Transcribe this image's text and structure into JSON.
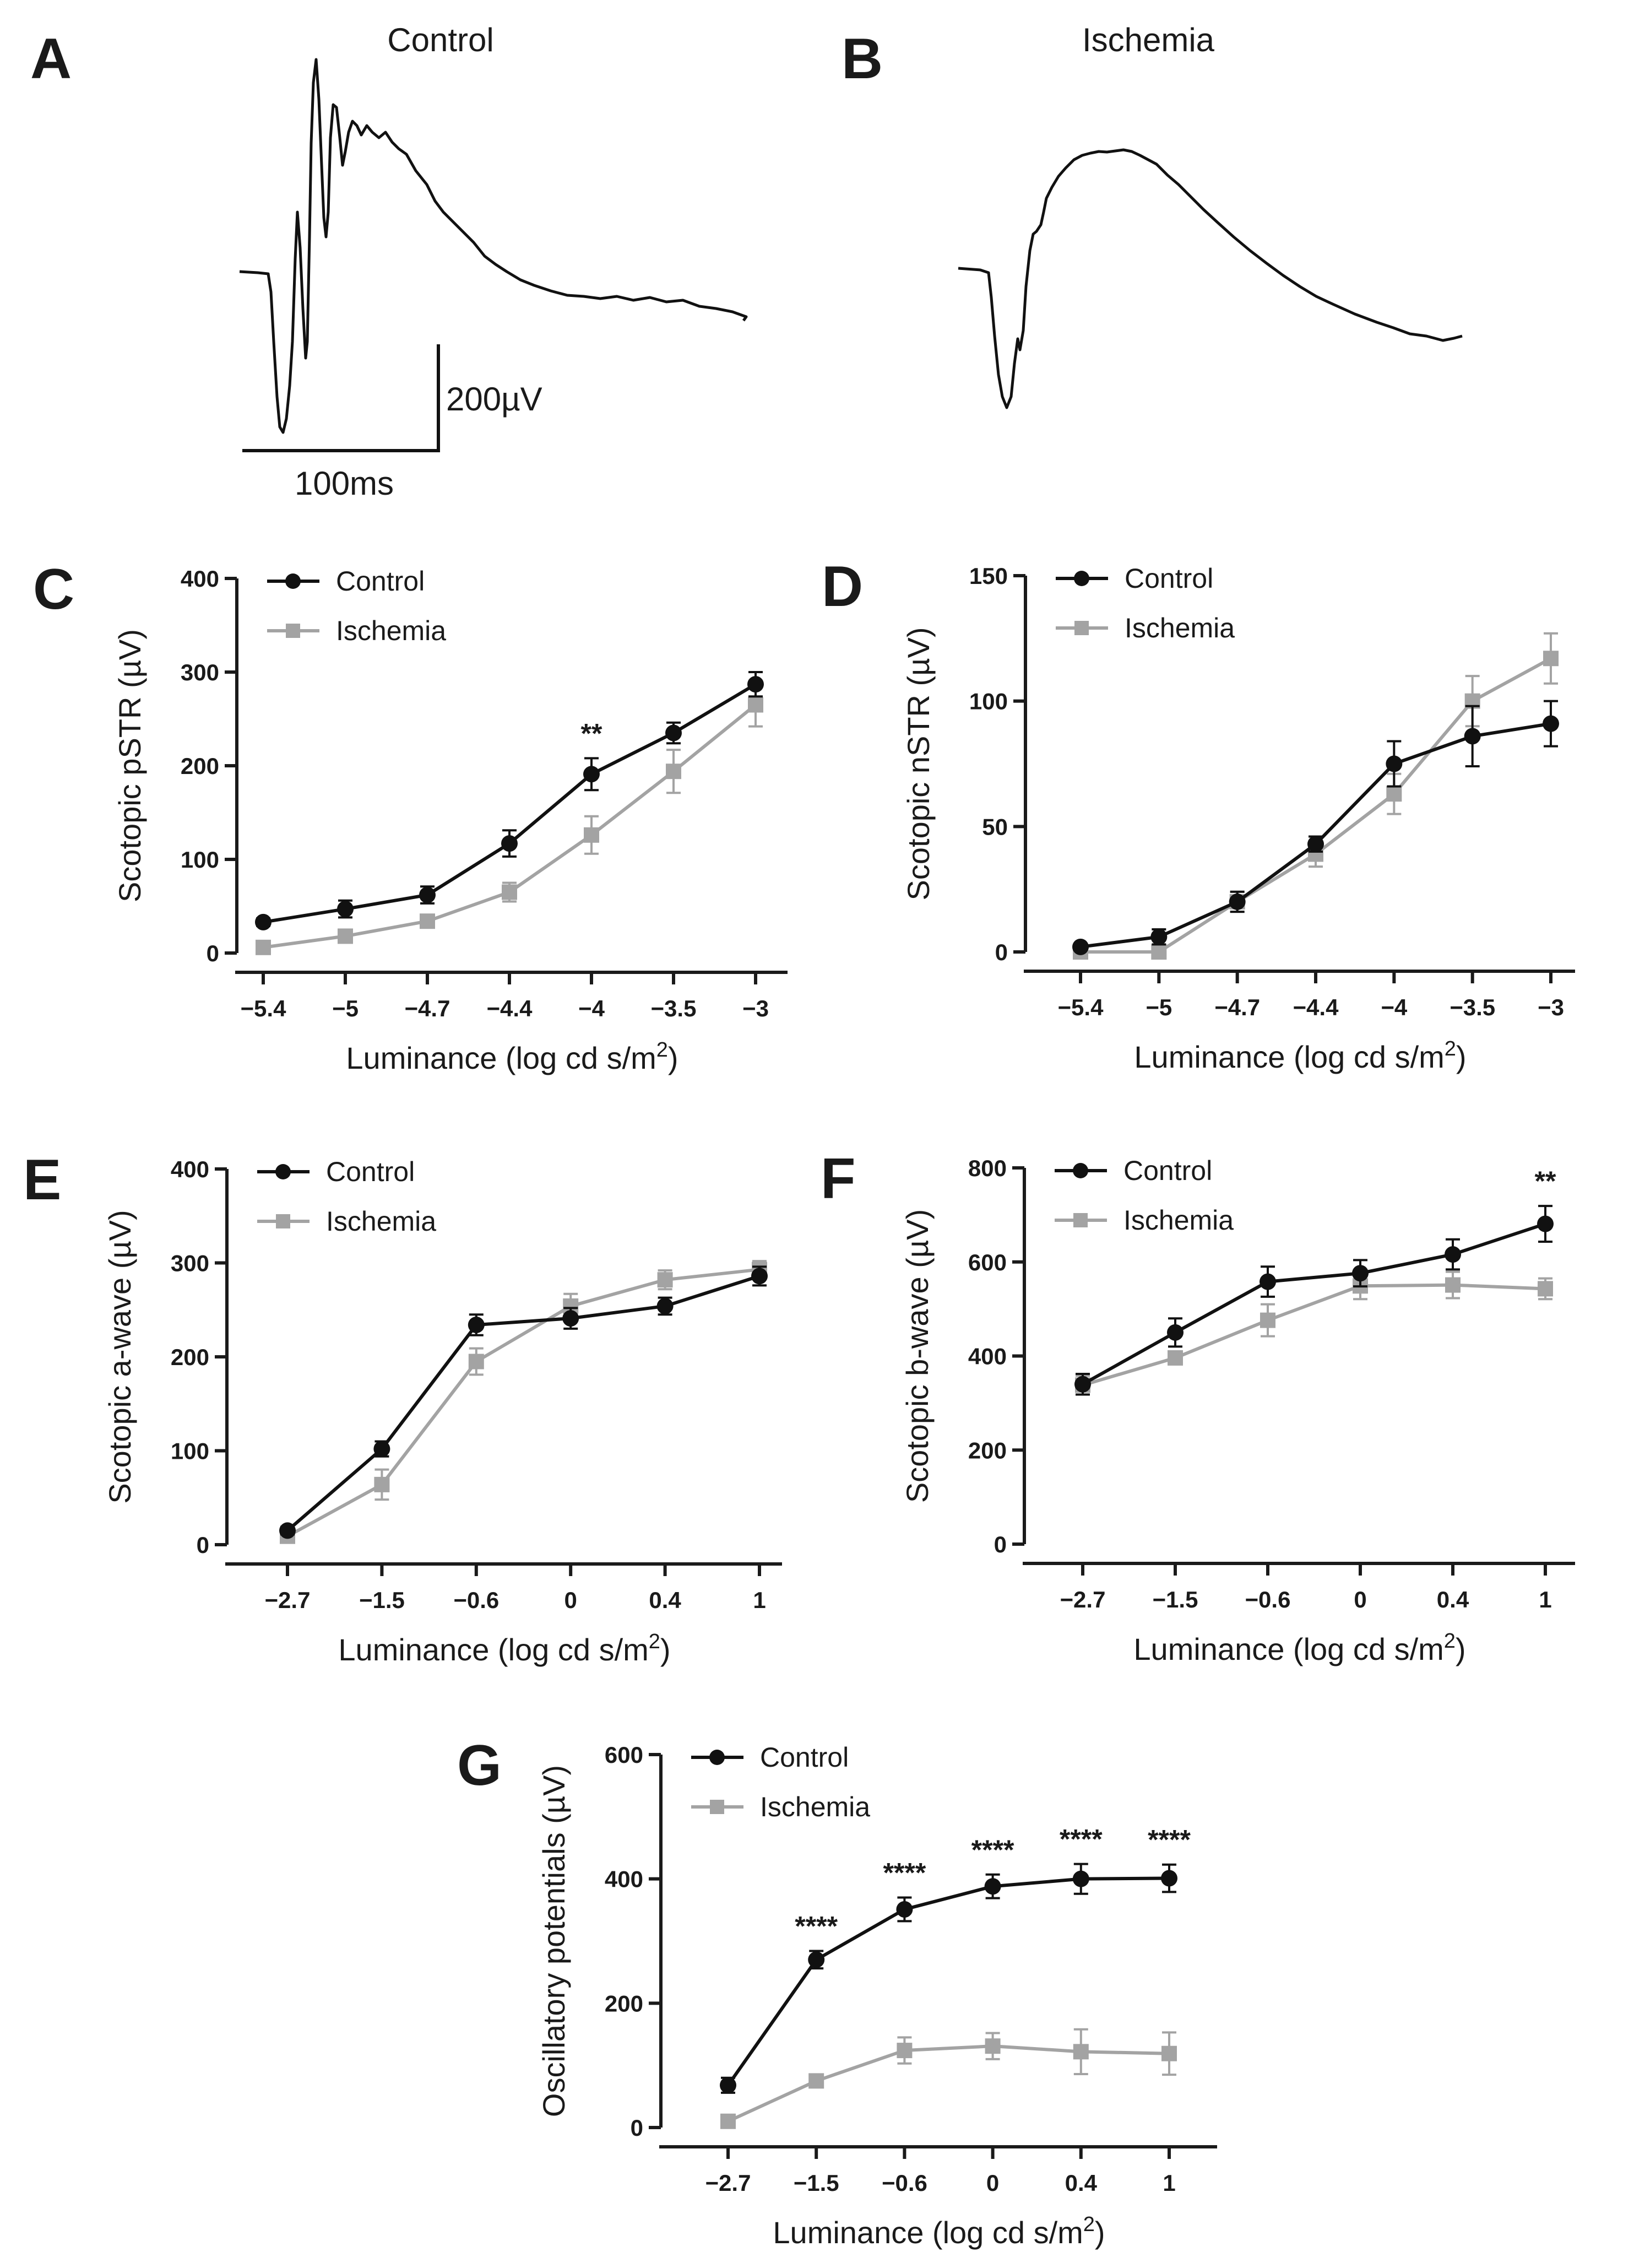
{
  "panels": {
    "A": {
      "letter": "A",
      "title": "Control"
    },
    "B": {
      "letter": "B",
      "title": "Ischemia"
    },
    "scale_bar": {
      "voltage": "200µV",
      "time": "100ms"
    }
  },
  "legend": {
    "control": "Control",
    "ischemia": "Ischemia"
  },
  "colors": {
    "control": "#111111",
    "ischemia": "#a3a3a3",
    "axis": "#1a1a1a"
  },
  "chart_data": [
    {
      "id": "C",
      "letter": "C",
      "type": "line",
      "ylabel": "Scotopic pSTR (µV)",
      "xlabel": "Luminance (log cd s/m²)",
      "categories": [
        "-5.4",
        "-5",
        "-4.7",
        "-4.4",
        "-4",
        "-3.5",
        "-3"
      ],
      "yticks": [
        0,
        100,
        200,
        300,
        400
      ],
      "ylim": [
        0,
        400
      ],
      "series": [
        {
          "name": "Control",
          "values": [
            33,
            47,
            62,
            117,
            191,
            235,
            287
          ],
          "errors": [
            4,
            9,
            9,
            14,
            17,
            11,
            13
          ]
        },
        {
          "name": "Ischemia",
          "values": [
            6,
            18,
            34,
            65,
            126,
            194,
            265
          ],
          "errors": [
            3,
            4,
            5,
            10,
            20,
            23,
            23
          ]
        }
      ],
      "annotations": [
        {
          "index": 4,
          "text": "**"
        }
      ]
    },
    {
      "id": "D",
      "letter": "D",
      "type": "line",
      "ylabel": "Scotopic nSTR (µV)",
      "xlabel": "Luminance (log cd s/m²)",
      "categories": [
        "-5.4",
        "-5",
        "-4.7",
        "-4.4",
        "-4",
        "-3.5",
        "-3"
      ],
      "yticks": [
        0,
        50,
        100,
        150
      ],
      "ylim": [
        0,
        150
      ],
      "series": [
        {
          "name": "Control",
          "values": [
            2,
            6,
            20,
            43,
            75,
            86,
            91
          ],
          "errors": [
            1,
            3,
            4,
            3,
            9,
            12,
            9
          ]
        },
        {
          "name": "Ischemia",
          "values": [
            0,
            0,
            20,
            39,
            63,
            100,
            117
          ],
          "errors": [
            1,
            1,
            4,
            5,
            8,
            10,
            10
          ]
        }
      ],
      "annotations": []
    },
    {
      "id": "E",
      "letter": "E",
      "type": "line",
      "ylabel": "Scotopic a-wave (µV)",
      "xlabel": "Luminance (log cd s/m²)",
      "categories": [
        "-2.7",
        "-1.5",
        "-0.6",
        "0",
        "0.4",
        "1"
      ],
      "yticks": [
        0,
        100,
        200,
        300,
        400
      ],
      "ylim": [
        0,
        400
      ],
      "series": [
        {
          "name": "Control",
          "values": [
            15,
            102,
            234,
            241,
            254,
            286
          ],
          "errors": [
            4,
            8,
            11,
            11,
            9,
            10
          ]
        },
        {
          "name": "Ischemia",
          "values": [
            9,
            64,
            195,
            254,
            282,
            293
          ],
          "errors": [
            4,
            16,
            14,
            13,
            10,
            9
          ]
        }
      ],
      "annotations": []
    },
    {
      "id": "F",
      "letter": "F",
      "type": "line",
      "ylabel": "Scotopic b-wave (µV)",
      "xlabel": "Luminance (log cd s/m²)",
      "categories": [
        "-2.7",
        "-1.5",
        "-0.6",
        "0",
        "0.4",
        "1"
      ],
      "yticks": [
        0,
        200,
        400,
        600,
        800
      ],
      "ylim": [
        0,
        800
      ],
      "series": [
        {
          "name": "Control",
          "values": [
            340,
            450,
            558,
            576,
            616,
            681
          ],
          "errors": [
            22,
            30,
            32,
            28,
            32,
            38
          ]
        },
        {
          "name": "Ischemia",
          "values": [
            338,
            396,
            476,
            549,
            551,
            543
          ],
          "errors": [
            20,
            12,
            34,
            28,
            28,
            22
          ]
        }
      ],
      "annotations": [
        {
          "index": 5,
          "text": "**"
        }
      ]
    },
    {
      "id": "G",
      "letter": "G",
      "type": "line",
      "ylabel": "Oscillatory potentials (µV)",
      "xlabel": "Luminance (log cd s/m²)",
      "categories": [
        "-2.7",
        "-1.5",
        "-0.6",
        "0",
        "0.4",
        "1"
      ],
      "yticks": [
        0,
        200,
        400,
        600
      ],
      "ylim": [
        0,
        600
      ],
      "series": [
        {
          "name": "Control",
          "values": [
            68,
            270,
            351,
            388,
            400,
            401
          ],
          "errors": [
            12,
            14,
            19,
            19,
            24,
            22
          ]
        },
        {
          "name": "Ischemia",
          "values": [
            10,
            75,
            124,
            131,
            122,
            119
          ],
          "errors": [
            5,
            9,
            21,
            21,
            36,
            34
          ]
        }
      ],
      "annotations": [
        {
          "index": 1,
          "text": "****"
        },
        {
          "index": 2,
          "text": "****"
        },
        {
          "index": 3,
          "text": "****"
        },
        {
          "index": 4,
          "text": "****"
        },
        {
          "index": 5,
          "text": "****"
        }
      ]
    }
  ]
}
